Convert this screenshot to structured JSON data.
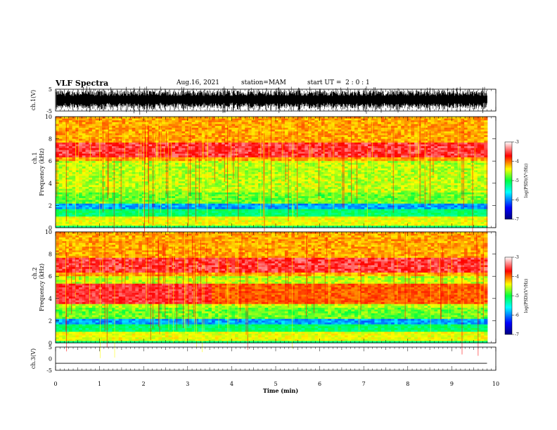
{
  "header": {
    "title": "VLF Spectra",
    "date": "Aug.16, 2021",
    "station": "station=MAM",
    "start": "start UT =  2 : 0 : 1"
  },
  "chart_data": [
    {
      "type": "line",
      "name": "ch1-waveform",
      "ylabel": "ch.1(V)",
      "ylim": [
        -5,
        5
      ],
      "yticks": [
        "5",
        "-5"
      ],
      "xlim": [
        0,
        10
      ]
    },
    {
      "type": "heatmap",
      "name": "ch1-spectrogram",
      "ylabel_top": "ch.1",
      "ylabel": "Frequency (kHz)",
      "ylim": [
        0,
        10
      ],
      "yticks": [
        "0",
        "2",
        "4",
        "6",
        "8",
        "10"
      ],
      "xlim": [
        0,
        10
      ],
      "colorbar": {
        "label": "log(PSD)(V²/Hz)",
        "ticks": [
          "-3",
          "-4",
          "-5",
          "-6",
          "-7"
        ],
        "range": [
          -7,
          -3
        ]
      }
    },
    {
      "type": "heatmap",
      "name": "ch2-spectrogram",
      "ylabel_top": "ch.2",
      "ylabel": "Frequency (kHz)",
      "ylim": [
        0,
        10
      ],
      "yticks": [
        "0",
        "2",
        "4",
        "6",
        "8",
        "10"
      ],
      "xlim": [
        0,
        10
      ],
      "colorbar": {
        "label": "log(PSD)(V²/Hz)",
        "ticks": [
          "-3",
          "-4",
          "-5",
          "-6",
          "-7"
        ],
        "range": [
          -7,
          -3
        ]
      }
    },
    {
      "type": "line",
      "name": "ch3-waveform",
      "ylabel": "ch.3(V)",
      "ylim": [
        -5,
        5
      ],
      "yticks": [
        "5",
        "0",
        "-5"
      ],
      "xlim": [
        0,
        10
      ],
      "x": [
        0,
        9.8
      ],
      "y": [
        -2,
        -2
      ]
    }
  ],
  "xaxis": {
    "label": "Time (min)",
    "ticks": [
      "0",
      "1",
      "2",
      "3",
      "4",
      "5",
      "6",
      "7",
      "8",
      "9",
      "10"
    ]
  }
}
